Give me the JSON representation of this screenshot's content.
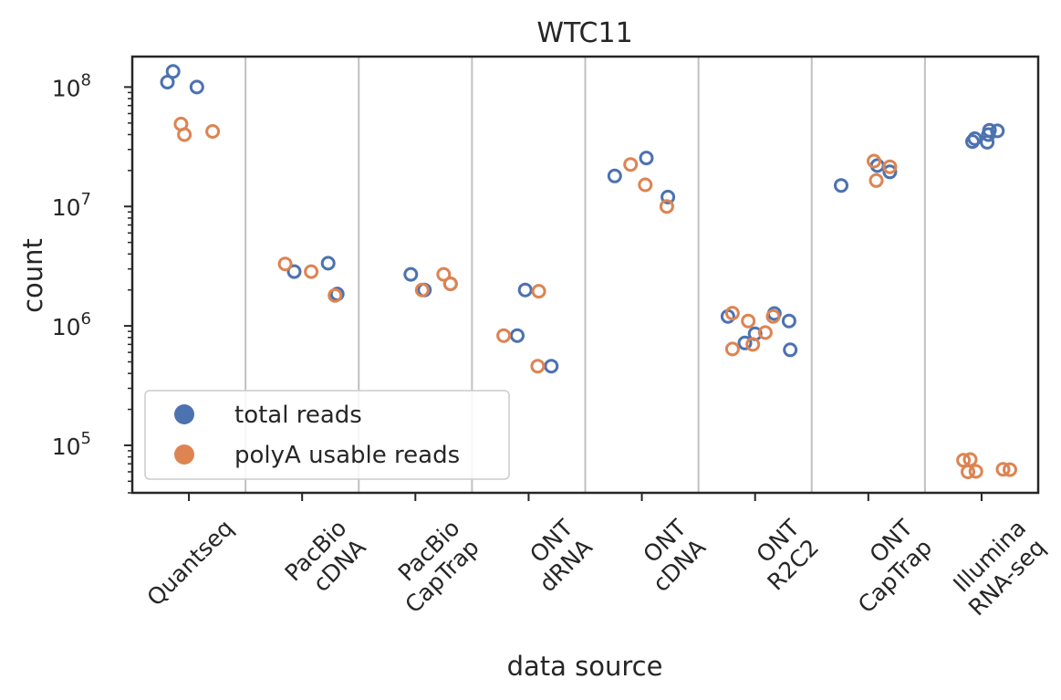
{
  "chart_data": {
    "type": "scatter",
    "title": "WTC11",
    "xlabel": "data source",
    "ylabel": "count",
    "yscale": "log",
    "ylim": [
      40000,
      180000000
    ],
    "yticks": [
      {
        "base": "10",
        "exp": "5",
        "value": 100000
      },
      {
        "base": "10",
        "exp": "6",
        "value": 1000000
      },
      {
        "base": "10",
        "exp": "7",
        "value": 10000000
      },
      {
        "base": "10",
        "exp": "8",
        "value": 100000000
      }
    ],
    "categories": [
      [
        "Quantseq"
      ],
      [
        "PacBio",
        "cDNA"
      ],
      [
        "PacBio",
        "CapTrap"
      ],
      [
        "ONT",
        "dRNA"
      ],
      [
        "ONT",
        "cDNA"
      ],
      [
        "ONT",
        "R2C2"
      ],
      [
        "ONT",
        "CapTrap"
      ],
      [
        "Illumina",
        "RNA-seq"
      ]
    ],
    "grid": "vertical separators between categories",
    "legend_position": "lower-left",
    "series": [
      {
        "name": "total reads",
        "color": "#4c72b0",
        "marker": "open-circle",
        "points": [
          {
            "cat": 0,
            "jitter": -0.19,
            "value": 110000000
          },
          {
            "cat": 0,
            "jitter": -0.14,
            "value": 135000000
          },
          {
            "cat": 0,
            "jitter": 0.07,
            "value": 100000000
          },
          {
            "cat": 1,
            "jitter": -0.07,
            "value": 2850000
          },
          {
            "cat": 1,
            "jitter": 0.23,
            "value": 3350000
          },
          {
            "cat": 1,
            "jitter": 0.31,
            "value": 1850000
          },
          {
            "cat": 2,
            "jitter": -0.04,
            "value": 2700000
          },
          {
            "cat": 2,
            "jitter": 0.08,
            "value": 2000000
          },
          {
            "cat": 2,
            "jitter": 0.31,
            "value": 2250000
          },
          {
            "cat": 3,
            "jitter": -0.03,
            "value": 2000000
          },
          {
            "cat": 3,
            "jitter": -0.1,
            "value": 830000
          },
          {
            "cat": 3,
            "jitter": 0.2,
            "value": 460000
          },
          {
            "cat": 4,
            "jitter": -0.24,
            "value": 18000000
          },
          {
            "cat": 4,
            "jitter": 0.04,
            "value": 25500000
          },
          {
            "cat": 4,
            "jitter": 0.23,
            "value": 12000000
          },
          {
            "cat": 5,
            "jitter": -0.24,
            "value": 1200000
          },
          {
            "cat": 5,
            "jitter": -0.09,
            "value": 720000
          },
          {
            "cat": 5,
            "jitter": 0.0,
            "value": 860000
          },
          {
            "cat": 5,
            "jitter": 0.17,
            "value": 1270000
          },
          {
            "cat": 5,
            "jitter": 0.3,
            "value": 1100000
          },
          {
            "cat": 5,
            "jitter": 0.31,
            "value": 630000
          },
          {
            "cat": 6,
            "jitter": -0.24,
            "value": 15000000
          },
          {
            "cat": 6,
            "jitter": 0.08,
            "value": 22000000
          },
          {
            "cat": 6,
            "jitter": 0.19,
            "value": 19500000
          },
          {
            "cat": 7,
            "jitter": -0.08,
            "value": 35000000
          },
          {
            "cat": 7,
            "jitter": -0.06,
            "value": 37000000
          },
          {
            "cat": 7,
            "jitter": 0.05,
            "value": 34500000
          },
          {
            "cat": 7,
            "jitter": 0.06,
            "value": 40000000
          },
          {
            "cat": 7,
            "jitter": 0.07,
            "value": 43500000
          },
          {
            "cat": 7,
            "jitter": 0.14,
            "value": 43000000
          }
        ]
      },
      {
        "name": "polyA usable reads",
        "color": "#dd8452",
        "marker": "open-circle",
        "points": [
          {
            "cat": 0,
            "jitter": -0.07,
            "value": 49000000
          },
          {
            "cat": 0,
            "jitter": -0.04,
            "value": 40000000
          },
          {
            "cat": 0,
            "jitter": 0.21,
            "value": 42500000
          },
          {
            "cat": 1,
            "jitter": -0.15,
            "value": 3300000
          },
          {
            "cat": 1,
            "jitter": 0.08,
            "value": 2850000
          },
          {
            "cat": 1,
            "jitter": 0.29,
            "value": 1800000
          },
          {
            "cat": 2,
            "jitter": 0.06,
            "value": 2000000
          },
          {
            "cat": 2,
            "jitter": 0.25,
            "value": 2700000
          },
          {
            "cat": 2,
            "jitter": 0.31,
            "value": 2250000
          },
          {
            "cat": 3,
            "jitter": -0.22,
            "value": 830000
          },
          {
            "cat": 3,
            "jitter": 0.09,
            "value": 1950000
          },
          {
            "cat": 3,
            "jitter": 0.08,
            "value": 460000
          },
          {
            "cat": 4,
            "jitter": -0.1,
            "value": 22500000
          },
          {
            "cat": 4,
            "jitter": 0.03,
            "value": 15200000
          },
          {
            "cat": 4,
            "jitter": 0.22,
            "value": 10000000
          },
          {
            "cat": 5,
            "jitter": -0.2,
            "value": 1280000
          },
          {
            "cat": 5,
            "jitter": -0.2,
            "value": 640000
          },
          {
            "cat": 5,
            "jitter": -0.06,
            "value": 1100000
          },
          {
            "cat": 5,
            "jitter": -0.02,
            "value": 700000
          },
          {
            "cat": 5,
            "jitter": 0.09,
            "value": 880000
          },
          {
            "cat": 5,
            "jitter": 0.16,
            "value": 1200000
          },
          {
            "cat": 6,
            "jitter": 0.05,
            "value": 24000000
          },
          {
            "cat": 6,
            "jitter": 0.07,
            "value": 16500000
          },
          {
            "cat": 6,
            "jitter": 0.19,
            "value": 21500000
          },
          {
            "cat": 7,
            "jitter": -0.16,
            "value": 75000
          },
          {
            "cat": 7,
            "jitter": -0.12,
            "value": 60000
          },
          {
            "cat": 7,
            "jitter": -0.1,
            "value": 76000
          },
          {
            "cat": 7,
            "jitter": -0.05,
            "value": 60500
          },
          {
            "cat": 7,
            "jitter": 0.19,
            "value": 63000
          },
          {
            "cat": 7,
            "jitter": 0.25,
            "value": 62500
          }
        ]
      }
    ]
  }
}
